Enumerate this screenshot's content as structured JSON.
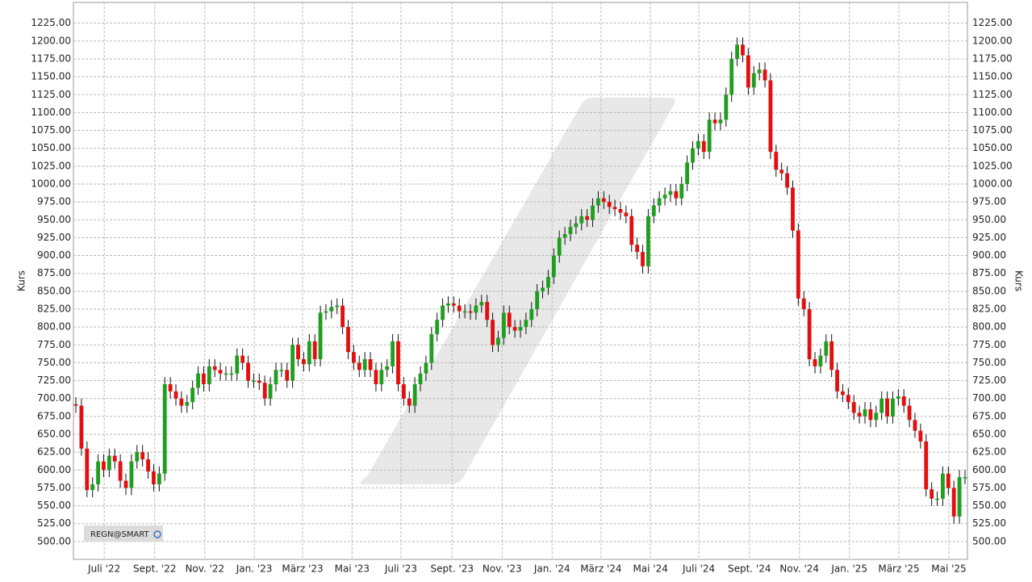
{
  "chart_data": {
    "type": "candlestick",
    "instrument_label": "REGN@SMART",
    "y_label": "Kurs",
    "up_color": "#1f9e1f",
    "down_color": "#e30f0f",
    "grid": true,
    "categories": [
      null,
      null,
      null,
      null,
      null,
      null,
      null,
      null,
      null,
      null,
      null,
      null,
      null,
      null,
      null,
      null,
      null,
      null,
      null,
      null,
      null,
      null,
      null,
      null,
      null,
      null,
      null,
      null,
      null,
      null,
      null,
      null,
      null,
      null,
      null,
      null,
      null,
      null,
      null,
      null,
      null,
      null,
      null,
      null,
      null,
      null,
      null,
      null,
      null,
      null,
      null,
      null,
      null,
      null,
      null,
      null,
      null,
      null,
      null,
      null,
      null,
      null,
      null,
      null,
      null,
      null,
      null,
      null,
      null,
      null,
      null,
      null,
      null,
      null,
      null,
      null,
      null,
      null,
      null,
      null,
      null,
      null,
      null,
      null,
      null,
      null,
      null,
      null,
      null,
      null,
      null,
      null,
      null,
      null,
      null,
      null,
      null,
      null,
      null,
      null,
      null,
      null,
      null,
      null,
      null,
      null,
      null,
      null,
      null,
      null,
      null,
      null,
      null,
      null,
      null,
      null,
      null,
      null,
      null,
      null,
      null,
      null,
      null,
      null,
      null,
      null,
      null,
      null,
      null,
      null,
      null,
      null,
      null,
      null,
      null,
      null,
      null,
      null,
      null,
      null,
      null,
      null,
      null,
      null,
      null,
      null,
      null,
      null,
      null,
      null,
      null,
      null,
      null,
      null,
      null,
      null,
      null,
      null,
      null,
      null,
      null
    ],
    "open": [
      692,
      690,
      630,
      572,
      580,
      612,
      600,
      620,
      612,
      585,
      575,
      612,
      625,
      615,
      598,
      580,
      595,
      720,
      710,
      700,
      690,
      695,
      715,
      735,
      720,
      745,
      740,
      735,
      735,
      735,
      760,
      750,
      725,
      725,
      722,
      700,
      720,
      740,
      740,
      725,
      775,
      755,
      748,
      780,
      755,
      820,
      822,
      828,
      830,
      800,
      765,
      750,
      740,
      755,
      740,
      720,
      740,
      745,
      780,
      720,
      700,
      690,
      720,
      735,
      750,
      790,
      810,
      830,
      833,
      830,
      822,
      822,
      820,
      830,
      835,
      810,
      775,
      785,
      820,
      800,
      795,
      800,
      810,
      825,
      850,
      855,
      870,
      900,
      925,
      930,
      940,
      945,
      955,
      950,
      970,
      980,
      975,
      968,
      965,
      960,
      955,
      915,
      905,
      885,
      955,
      970,
      980,
      985,
      990,
      980,
      1000,
      1030,
      1050,
      1060,
      1045,
      1090,
      1085,
      1090,
      1125,
      1175,
      1195,
      1180,
      1135,
      1155,
      1160,
      1145,
      1045,
      1020,
      1015,
      995,
      935,
      840,
      825,
      755,
      745,
      760,
      780,
      740,
      710,
      705,
      695,
      680,
      675,
      685,
      670,
      680,
      700,
      675,
      700,
      703,
      690,
      670,
      655,
      640,
      573,
      560,
      560,
      595,
      575,
      535,
      590
    ],
    "high": [
      702,
      700,
      640,
      590,
      622,
      622,
      630,
      630,
      622,
      595,
      622,
      635,
      635,
      625,
      608,
      605,
      730,
      730,
      720,
      710,
      705,
      725,
      745,
      745,
      755,
      755,
      750,
      745,
      745,
      770,
      770,
      760,
      735,
      735,
      732,
      730,
      750,
      750,
      750,
      785,
      785,
      765,
      790,
      790,
      830,
      832,
      838,
      840,
      840,
      810,
      775,
      760,
      765,
      765,
      750,
      750,
      755,
      790,
      790,
      730,
      710,
      730,
      745,
      760,
      800,
      820,
      840,
      843,
      843,
      840,
      832,
      832,
      840,
      845,
      845,
      820,
      795,
      830,
      830,
      810,
      810,
      820,
      835,
      860,
      865,
      880,
      910,
      935,
      940,
      950,
      955,
      965,
      965,
      980,
      990,
      990,
      985,
      978,
      975,
      970,
      965,
      925,
      915,
      965,
      980,
      990,
      995,
      1000,
      1000,
      1010,
      1040,
      1060,
      1070,
      1070,
      1100,
      1100,
      1100,
      1135,
      1185,
      1205,
      1205,
      1190,
      1165,
      1170,
      1170,
      1155,
      1055,
      1030,
      1025,
      1005,
      945,
      850,
      835,
      765,
      770,
      790,
      790,
      750,
      720,
      715,
      705,
      690,
      695,
      695,
      690,
      710,
      710,
      710,
      713,
      713,
      700,
      680,
      665,
      650,
      583,
      570,
      605,
      605,
      585,
      600,
      600
    ],
    "low": [
      680,
      620,
      562,
      562,
      570,
      590,
      590,
      602,
      575,
      565,
      565,
      602,
      605,
      588,
      570,
      570,
      585,
      700,
      690,
      680,
      680,
      685,
      705,
      710,
      710,
      730,
      725,
      725,
      725,
      725,
      740,
      715,
      715,
      712,
      690,
      690,
      710,
      730,
      715,
      715,
      745,
      738,
      738,
      745,
      745,
      810,
      812,
      818,
      790,
      755,
      740,
      730,
      730,
      730,
      710,
      710,
      730,
      735,
      710,
      690,
      680,
      680,
      710,
      725,
      740,
      780,
      800,
      820,
      820,
      812,
      812,
      810,
      810,
      820,
      800,
      765,
      765,
      775,
      790,
      785,
      785,
      790,
      800,
      815,
      840,
      845,
      860,
      890,
      915,
      920,
      930,
      935,
      940,
      940,
      960,
      965,
      958,
      955,
      950,
      945,
      905,
      895,
      875,
      875,
      945,
      960,
      970,
      975,
      970,
      970,
      990,
      1020,
      1040,
      1035,
      1035,
      1075,
      1075,
      1080,
      1115,
      1165,
      1170,
      1125,
      1125,
      1145,
      1135,
      1035,
      1010,
      1005,
      985,
      925,
      830,
      815,
      745,
      735,
      735,
      750,
      730,
      700,
      695,
      685,
      670,
      665,
      665,
      660,
      660,
      670,
      665,
      665,
      690,
      680,
      660,
      645,
      630,
      563,
      550,
      550,
      550,
      565,
      525,
      525,
      580
    ],
    "close": [
      690,
      630,
      572,
      580,
      612,
      600,
      620,
      612,
      585,
      575,
      612,
      625,
      615,
      598,
      580,
      595,
      720,
      710,
      700,
      690,
      695,
      715,
      735,
      720,
      745,
      740,
      735,
      735,
      735,
      760,
      750,
      725,
      725,
      722,
      700,
      720,
      740,
      740,
      725,
      775,
      755,
      748,
      780,
      755,
      820,
      822,
      828,
      830,
      800,
      765,
      750,
      740,
      755,
      740,
      720,
      740,
      745,
      780,
      720,
      700,
      690,
      720,
      735,
      750,
      790,
      810,
      830,
      833,
      830,
      822,
      822,
      820,
      830,
      835,
      810,
      775,
      785,
      820,
      800,
      795,
      800,
      810,
      825,
      850,
      855,
      870,
      900,
      925,
      930,
      940,
      945,
      955,
      950,
      970,
      980,
      975,
      968,
      965,
      960,
      955,
      915,
      905,
      885,
      955,
      970,
      980,
      985,
      990,
      980,
      1000,
      1030,
      1050,
      1060,
      1045,
      1090,
      1085,
      1090,
      1125,
      1175,
      1195,
      1180,
      1135,
      1155,
      1160,
      1145,
      1045,
      1020,
      1015,
      995,
      935,
      840,
      825,
      755,
      745,
      760,
      780,
      740,
      710,
      705,
      695,
      680,
      675,
      685,
      670,
      680,
      700,
      675,
      700,
      703,
      690,
      670,
      655,
      640,
      573,
      560,
      560,
      595,
      575,
      535,
      590,
      590
    ],
    "xlim": [
      -0.44,
      160.44
    ],
    "xticks": [
      {
        "value": 5.1,
        "label": "Juli '22"
      },
      {
        "value": 14.2,
        "label": "Sept. '22"
      },
      {
        "value": 23.2,
        "label": "Nov. '22"
      },
      {
        "value": 32.1,
        "label": "Jan. '23"
      },
      {
        "value": 40.8,
        "label": "März '23"
      },
      {
        "value": 49.7,
        "label": "Mai '23"
      },
      {
        "value": 58.5,
        "label": "Juli '23"
      },
      {
        "value": 67.7,
        "label": "Sept. '23"
      },
      {
        "value": 76.7,
        "label": "Nov. '23"
      },
      {
        "value": 85.7,
        "label": "Jan. '24"
      },
      {
        "value": 94.5,
        "label": "März '24"
      },
      {
        "value": 103.4,
        "label": "Mai '24"
      },
      {
        "value": 112.1,
        "label": "Juli '24"
      },
      {
        "value": 121.2,
        "label": "Sept. '24"
      },
      {
        "value": 130.2,
        "label": "Nov. '24"
      },
      {
        "value": 139.2,
        "label": "Jan. '25"
      },
      {
        "value": 148.1,
        "label": "März '25"
      },
      {
        "value": 157.1,
        "label": "Mai '25"
      }
    ],
    "ylim": [
      475,
      1254
    ],
    "yticks": [
      {
        "value": 500,
        "label": "500.00"
      },
      {
        "value": 525,
        "label": "525.00"
      },
      {
        "value": 550,
        "label": "550.00"
      },
      {
        "value": 575,
        "label": "575.00"
      },
      {
        "value": 600,
        "label": "600.00"
      },
      {
        "value": 625,
        "label": "625.00"
      },
      {
        "value": 650,
        "label": "650.00"
      },
      {
        "value": 675,
        "label": "675.00"
      },
      {
        "value": 700,
        "label": "700.00"
      },
      {
        "value": 725,
        "label": "725.00"
      },
      {
        "value": 750,
        "label": "750.00"
      },
      {
        "value": 775,
        "label": "775.00"
      },
      {
        "value": 800,
        "label": "800.00"
      },
      {
        "value": 825,
        "label": "825.00"
      },
      {
        "value": 850,
        "label": "850.00"
      },
      {
        "value": 875,
        "label": "875.00"
      },
      {
        "value": 900,
        "label": "900.00"
      },
      {
        "value": 925,
        "label": "925.00"
      },
      {
        "value": 950,
        "label": "950.00"
      },
      {
        "value": 975,
        "label": "975.00"
      },
      {
        "value": 1000,
        "label": "1000.00"
      },
      {
        "value": 1025,
        "label": "1025.00"
      },
      {
        "value": 1050,
        "label": "1050.00"
      },
      {
        "value": 1075,
        "label": "1075.00"
      },
      {
        "value": 1100,
        "label": "1100.00"
      },
      {
        "value": 1125,
        "label": "1125.00"
      },
      {
        "value": 1150,
        "label": "1150.00"
      },
      {
        "value": 1175,
        "label": "1175.00"
      },
      {
        "value": 1200,
        "label": "1200.00"
      },
      {
        "value": 1225,
        "label": "1225.00"
      }
    ]
  }
}
